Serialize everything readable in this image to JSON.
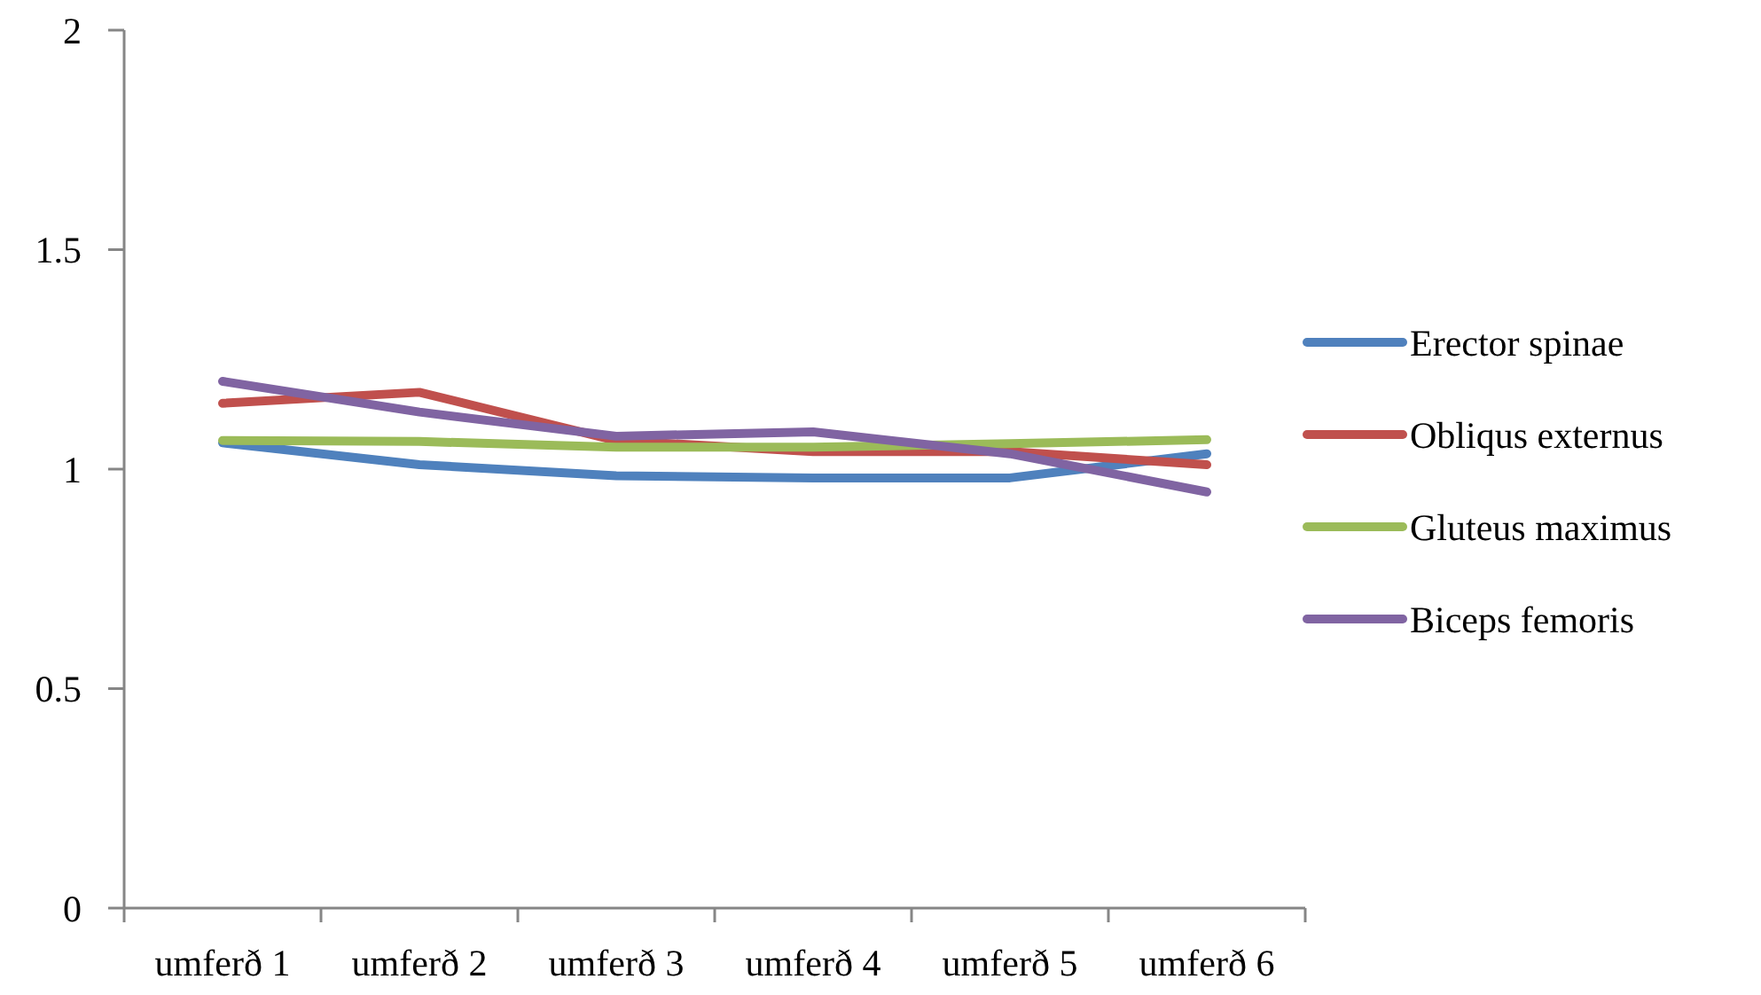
{
  "chart_data": {
    "type": "line",
    "categories": [
      "umferð 1",
      "umferð 2",
      "umferð 3",
      "umferð 4",
      "umferð 5",
      "umferð 6"
    ],
    "series": [
      {
        "name": "Erector spinae",
        "color": "#4f81bd",
        "values": [
          1.06,
          1.01,
          0.985,
          0.98,
          0.98,
          1.035
        ]
      },
      {
        "name": "Obliqus externus",
        "color": "#c0504d",
        "values": [
          1.15,
          1.175,
          1.065,
          1.04,
          1.04,
          1.01
        ]
      },
      {
        "name": "Gluteus maximus",
        "color": "#9bbb59",
        "values": [
          1.065,
          1.063,
          1.05,
          1.05,
          1.058,
          1.067
        ]
      },
      {
        "name": "Biceps femoris",
        "color": "#8064a2",
        "values": [
          1.2,
          1.13,
          1.075,
          1.085,
          1.035,
          0.948
        ]
      }
    ],
    "ylim": [
      0,
      2
    ],
    "yticks": [
      0,
      0.5,
      1,
      1.5,
      2
    ],
    "grid": false,
    "legend": "right",
    "marker": "none",
    "line_style": "solid"
  }
}
